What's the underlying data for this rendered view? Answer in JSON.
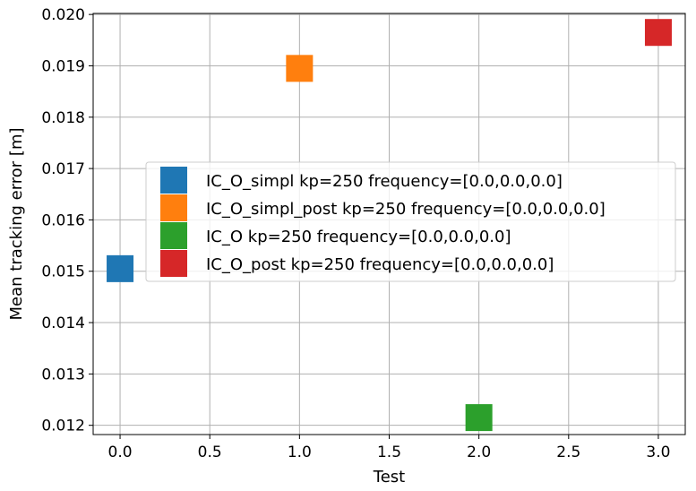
{
  "chart_data": {
    "type": "scatter",
    "xlabel": "Test",
    "ylabel": "Mean tracking error [m]",
    "xlim": [
      -0.15,
      3.15
    ],
    "ylim": [
      0.01182,
      0.02002
    ],
    "grid": true,
    "legend_position": "center-right",
    "x_ticks": [
      0.0,
      0.5,
      1.0,
      1.5,
      2.0,
      2.5,
      3.0
    ],
    "x_tick_labels": [
      "0.0",
      "0.5",
      "1.0",
      "1.5",
      "2.0",
      "2.5",
      "3.0"
    ],
    "y_ticks": [
      0.012,
      0.013,
      0.014,
      0.015,
      0.016,
      0.017,
      0.018,
      0.019,
      0.02
    ],
    "y_tick_labels": [
      "0.012",
      "0.013",
      "0.014",
      "0.015",
      "0.016",
      "0.017",
      "0.018",
      "0.019",
      "0.020"
    ],
    "marker": "square",
    "series": [
      {
        "name": "IC_O_simpl kp=250 frequency=[0.0,0.0,0.0]",
        "color": "#1f77b4",
        "x": [
          0.0
        ],
        "y": [
          0.01505
        ]
      },
      {
        "name": "IC_O_simpl_post kp=250 frequency=[0.0,0.0,0.0]",
        "color": "#ff7f0e",
        "x": [
          1.0
        ],
        "y": [
          0.01895
        ]
      },
      {
        "name": "IC_O kp=250 frequency=[0.0,0.0,0.0]",
        "color": "#2ca02c",
        "x": [
          2.0
        ],
        "y": [
          0.01215
        ]
      },
      {
        "name": "IC_O_post kp=250 frequency=[0.0,0.0,0.0]",
        "color": "#d62728",
        "x": [
          3.0
        ],
        "y": [
          0.01965
        ]
      }
    ]
  }
}
